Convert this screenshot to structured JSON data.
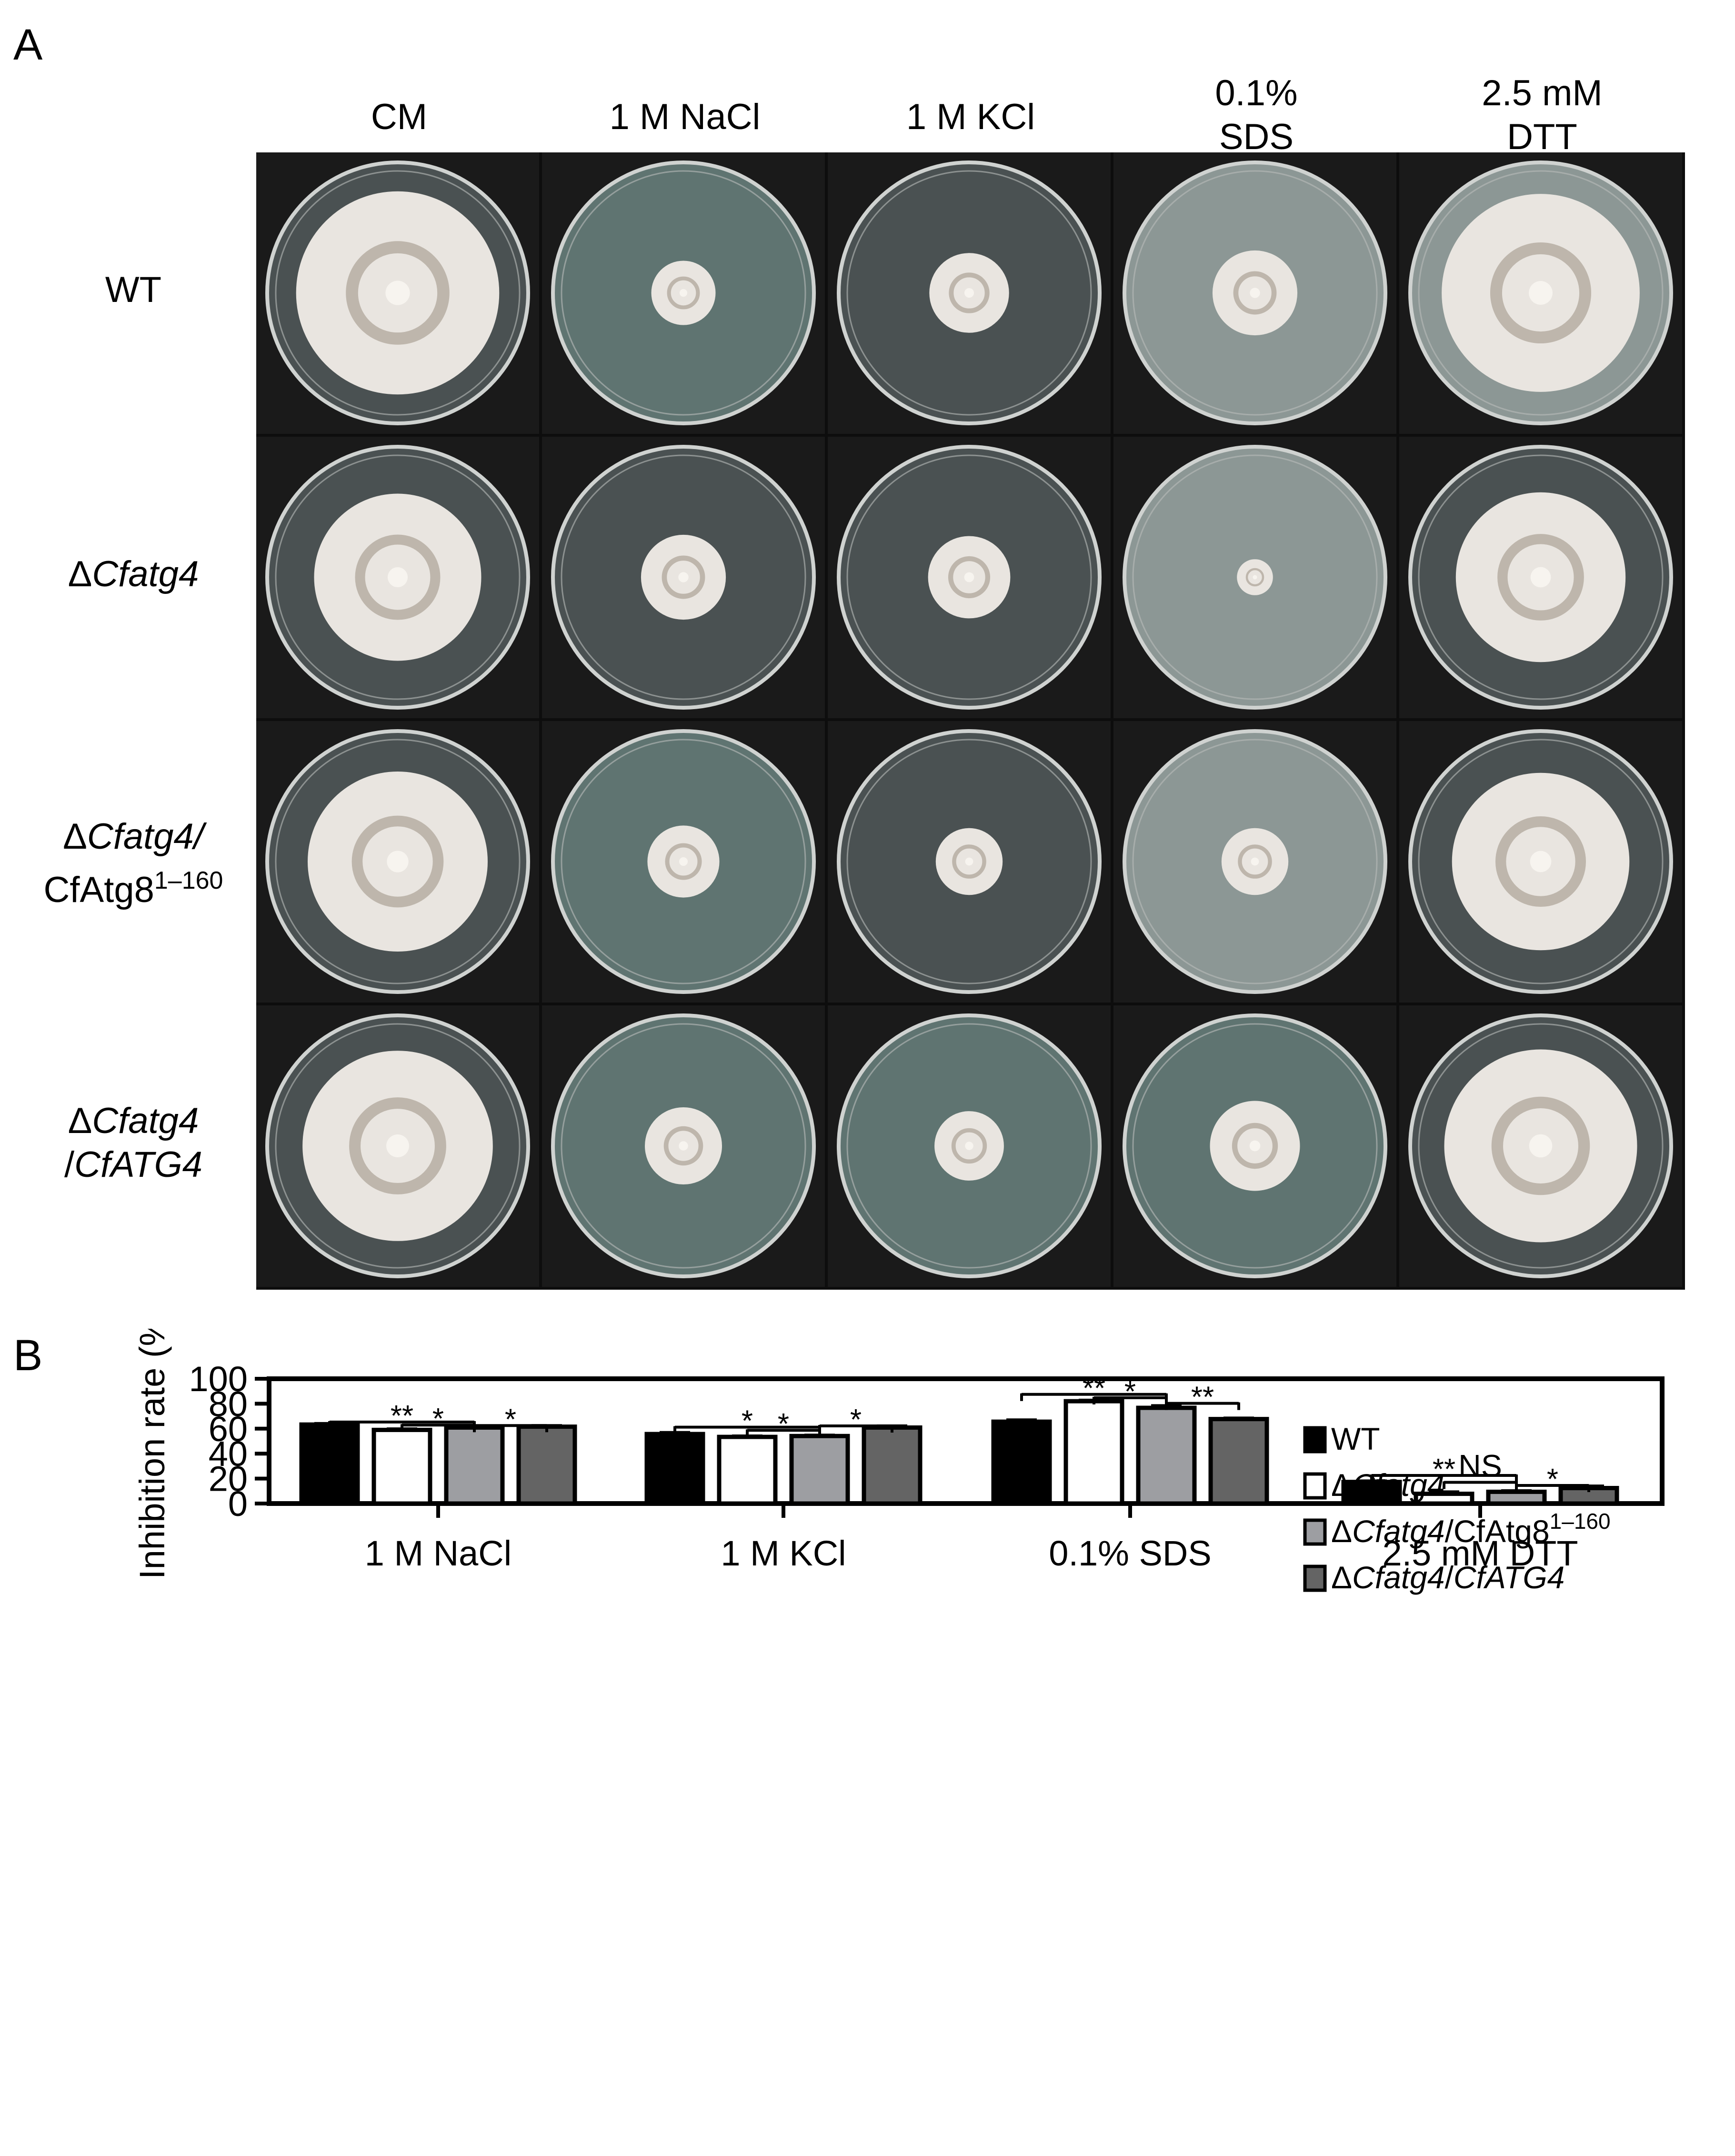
{
  "panel_a": {
    "letter": "A",
    "columns": [
      {
        "id": "cm",
        "lines": [
          "CM"
        ]
      },
      {
        "id": "nacl",
        "lines": [
          "1 M NaCl"
        ]
      },
      {
        "id": "kcl",
        "lines": [
          "1 M KCl"
        ]
      },
      {
        "id": "sds",
        "lines": [
          "0.1%",
          "SDS"
        ]
      },
      {
        "id": "dtt",
        "lines": [
          "2.5 mM",
          "DTT"
        ]
      }
    ],
    "rows": [
      {
        "id": "wt",
        "lines": [
          [
            "WT"
          ]
        ]
      },
      {
        "id": "cfatg4",
        "lines": [
          [
            "Δ",
            "Cfatg4"
          ]
        ]
      },
      {
        "id": "cfatg4-atg8",
        "lines": [
          [
            "Δ",
            "Cfatg4/"
          ],
          [
            "CfAtg8",
            "1–160"
          ]
        ]
      },
      {
        "id": "cfatg4-cfatg4",
        "lines": [
          [
            "Δ",
            "Cfatg4"
          ],
          [
            "/",
            "CfATG4"
          ]
        ]
      }
    ],
    "plate_colony_diameter_fraction": [
      [
        0.79,
        0.25,
        0.31,
        0.33,
        0.77
      ],
      [
        0.65,
        0.33,
        0.32,
        0.14,
        0.66
      ],
      [
        0.7,
        0.28,
        0.26,
        0.26,
        0.69
      ],
      [
        0.74,
        0.3,
        0.27,
        0.35,
        0.75
      ]
    ],
    "plate_colors": {
      "background": "#1a1a1a",
      "agar_dark": "#4a5152",
      "agar_teal": "#5f7471",
      "agar_light": "#8c9795",
      "colony": "#e9e5e0",
      "colony_ring": "#9a9082"
    }
  },
  "panel_b": {
    "letter": "B",
    "chart_data": {
      "type": "bar",
      "ylabel": "Inhibition rate (%)",
      "xlabel": "",
      "ylim": [
        0,
        100
      ],
      "yticks": [
        0,
        20,
        40,
        60,
        80,
        100
      ],
      "categories": [
        "1 M NaCl",
        "1 M KCl",
        "0.1% SDS",
        "2.5 mM DTT"
      ],
      "series": [
        {
          "name": "WT",
          "legend": [
            "WT"
          ],
          "color": "#000000",
          "values": [
            63.3,
            55.7,
            65.6,
            17.3
          ],
          "errors": [
            0.5,
            0.9,
            1.1,
            0.5
          ]
        },
        {
          "name": "ΔCfatg4",
          "legend": [
            "Δ",
            "Cfatg4"
          ],
          "color": "#ffffff",
          "values": [
            59.0,
            53.4,
            82.0,
            7.8
          ],
          "errors": [
            0.5,
            0.4,
            0.5,
            1.2
          ]
        },
        {
          "name": "ΔCfatg4/CfAtg81–160",
          "legend": [
            "Δ",
            "Cfatg4",
            "/CfAtg8",
            "1–160"
          ],
          "color": "#9d9ea2",
          "values": [
            60.9,
            54.1,
            76.7,
            9.4
          ],
          "errors": [
            0.9,
            0.4,
            1.4,
            0.5
          ]
        },
        {
          "name": "ΔCfatg4/CfATG4",
          "legend": [
            "Δ",
            "Cfatg4",
            "/",
            "CfATG4"
          ],
          "color": "#646464",
          "values": [
            61.6,
            60.9,
            67.7,
            12.4
          ],
          "errors": [
            0.5,
            1.0,
            0.5,
            1.3
          ]
        }
      ],
      "significance": [
        {
          "category": 0,
          "from": 0,
          "to": 2,
          "label": "**",
          "level": 65.3
        },
        {
          "category": 0,
          "from": 1,
          "to": 2,
          "label": "*",
          "level": 62.9
        },
        {
          "category": 0,
          "from": 2,
          "to": 3,
          "label": "*",
          "level": 62.5
        },
        {
          "category": 1,
          "from": 0,
          "to": 2,
          "label": "*",
          "level": 61.2
        },
        {
          "category": 1,
          "from": 1,
          "to": 2,
          "label": "*",
          "level": 58.7
        },
        {
          "category": 1,
          "from": 2,
          "to": 3,
          "label": "*",
          "level": 62.2
        },
        {
          "category": 2,
          "from": 0,
          "to": 2,
          "label": "**",
          "level": 87.5
        },
        {
          "category": 2,
          "from": 1,
          "to": 2,
          "label": "*",
          "level": 84.8
        },
        {
          "category": 2,
          "from": 2,
          "to": 3,
          "label": "**",
          "level": 80.3
        },
        {
          "category": 3,
          "from": 0,
          "to": 2,
          "label": "**",
          "level": 22.5
        },
        {
          "category": 3,
          "from": 1,
          "to": 2,
          "label": "NS",
          "level": 17.0
        },
        {
          "category": 3,
          "from": 2,
          "to": 3,
          "label": "*",
          "level": 14.5
        }
      ],
      "legend_position": "top-right",
      "grid": false
    }
  }
}
